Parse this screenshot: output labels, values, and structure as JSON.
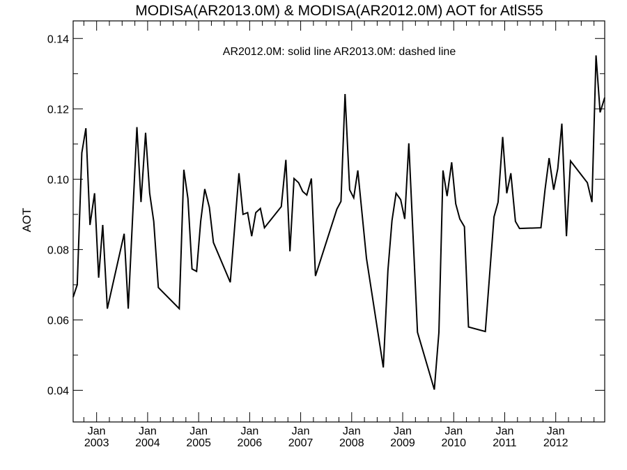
{
  "chart_data": {
    "type": "line",
    "title": "MODISA(AR2013.0M) & MODISA(AR2012.0M)  AOT for AtlS55",
    "ylabel": "AOT",
    "xlabel": "",
    "annotation": "AR2012.0M: solid line   AR2013.0M: dashed line",
    "ylim": [
      0.031,
      0.145
    ],
    "xlim": [
      2002.54,
      2012.96
    ],
    "y_ticks": [
      0.04,
      0.06,
      0.08,
      0.1,
      0.12,
      0.14
    ],
    "y_tick_labels": [
      "0.04",
      "0.06",
      "0.08",
      "0.10",
      "0.12",
      "0.14"
    ],
    "x_major_ticks": [
      {
        "x": 2003.0,
        "top": "Jan",
        "bottom": "2003"
      },
      {
        "x": 2004.0,
        "top": "Jan",
        "bottom": "2004"
      },
      {
        "x": 2005.0,
        "top": "Jan",
        "bottom": "2005"
      },
      {
        "x": 2006.0,
        "top": "Jan",
        "bottom": "2006"
      },
      {
        "x": 2007.0,
        "top": "Jan",
        "bottom": "2007"
      },
      {
        "x": 2008.0,
        "top": "Jan",
        "bottom": "2008"
      },
      {
        "x": 2009.0,
        "top": "Jan",
        "bottom": "2009"
      },
      {
        "x": 2010.0,
        "top": "Jan",
        "bottom": "2010"
      },
      {
        "x": 2011.0,
        "top": "Jan",
        "bottom": "2011"
      },
      {
        "x": 2012.0,
        "top": "Jan",
        "bottom": "2012"
      }
    ],
    "grid": false,
    "series": [
      {
        "name": "AR2012.0M",
        "style": "solid",
        "color": "#000000",
        "points": [
          [
            2002.54,
            0.0665
          ],
          [
            2002.62,
            0.07
          ],
          [
            2002.71,
            0.1075
          ],
          [
            2002.79,
            0.1145
          ],
          [
            2002.87,
            0.087
          ],
          [
            2002.96,
            0.096
          ],
          [
            2003.04,
            0.072
          ],
          [
            2003.12,
            0.087
          ],
          [
            2003.21,
            0.0632
          ],
          [
            2003.54,
            0.0845
          ],
          [
            2003.62,
            0.0632
          ],
          [
            2003.79,
            0.1148
          ],
          [
            2003.87,
            0.0935
          ],
          [
            2003.96,
            0.1132
          ],
          [
            2004.04,
            0.096
          ],
          [
            2004.12,
            0.088
          ],
          [
            2004.21,
            0.0692
          ],
          [
            2004.62,
            0.0632
          ],
          [
            2004.71,
            0.1027
          ],
          [
            2004.79,
            0.0945
          ],
          [
            2004.87,
            0.0745
          ],
          [
            2004.96,
            0.0738
          ],
          [
            2005.04,
            0.088
          ],
          [
            2005.12,
            0.0972
          ],
          [
            2005.21,
            0.092
          ],
          [
            2005.29,
            0.082
          ],
          [
            2005.62,
            0.0707
          ],
          [
            2005.79,
            0.1017
          ],
          [
            2005.87,
            0.09
          ],
          [
            2005.96,
            0.0905
          ],
          [
            2006.04,
            0.0838
          ],
          [
            2006.12,
            0.0905
          ],
          [
            2006.21,
            0.0917
          ],
          [
            2006.29,
            0.0862
          ],
          [
            2006.62,
            0.0922
          ],
          [
            2006.71,
            0.1055
          ],
          [
            2006.79,
            0.0795
          ],
          [
            2006.87,
            0.1002
          ],
          [
            2006.96,
            0.099
          ],
          [
            2007.04,
            0.0965
          ],
          [
            2007.12,
            0.0955
          ],
          [
            2007.21,
            0.1002
          ],
          [
            2007.29,
            0.0725
          ],
          [
            2007.71,
            0.0915
          ],
          [
            2007.79,
            0.0937
          ],
          [
            2007.87,
            0.1242
          ],
          [
            2007.96,
            0.097
          ],
          [
            2008.04,
            0.0947
          ],
          [
            2008.12,
            0.1025
          ],
          [
            2008.29,
            0.0775
          ],
          [
            2008.62,
            0.0465
          ],
          [
            2008.71,
            0.074
          ],
          [
            2008.79,
            0.0882
          ],
          [
            2008.87,
            0.096
          ],
          [
            2008.96,
            0.0942
          ],
          [
            2009.04,
            0.0887
          ],
          [
            2009.12,
            0.1102
          ],
          [
            2009.29,
            0.0565
          ],
          [
            2009.62,
            0.0402
          ],
          [
            2009.71,
            0.0565
          ],
          [
            2009.79,
            0.1025
          ],
          [
            2009.87,
            0.0952
          ],
          [
            2009.96,
            0.1048
          ],
          [
            2010.04,
            0.093
          ],
          [
            2010.12,
            0.0887
          ],
          [
            2010.21,
            0.0865
          ],
          [
            2010.29,
            0.058
          ],
          [
            2010.62,
            0.0567
          ],
          [
            2010.79,
            0.0893
          ],
          [
            2010.87,
            0.0935
          ],
          [
            2010.96,
            0.112
          ],
          [
            2011.04,
            0.096
          ],
          [
            2011.12,
            0.1017
          ],
          [
            2011.21,
            0.088
          ],
          [
            2011.29,
            0.086
          ],
          [
            2011.71,
            0.0862
          ],
          [
            2011.79,
            0.097
          ],
          [
            2011.87,
            0.106
          ],
          [
            2011.96,
            0.097
          ],
          [
            2012.04,
            0.103
          ],
          [
            2012.12,
            0.1158
          ],
          [
            2012.21,
            0.0838
          ],
          [
            2012.29,
            0.1052
          ],
          [
            2012.62,
            0.099
          ],
          [
            2012.71,
            0.0935
          ],
          [
            2012.79,
            0.1352
          ],
          [
            2012.87,
            0.119
          ],
          [
            2012.96,
            0.1232
          ]
        ]
      }
    ]
  }
}
